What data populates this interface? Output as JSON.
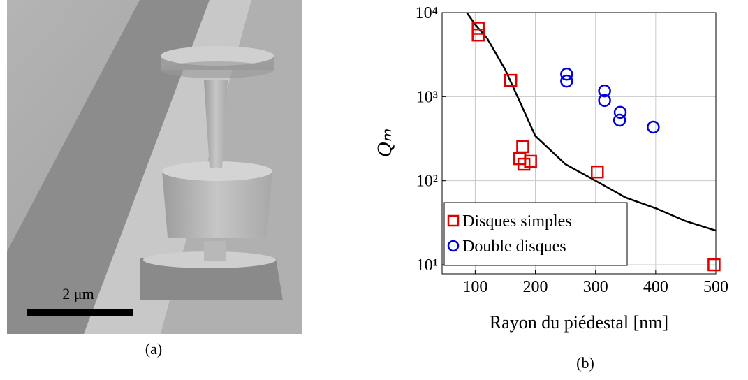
{
  "panel_a": {
    "scale_label": "2 μm",
    "caption": "(a)"
  },
  "panel_b_caption": "(b)",
  "chart_data": {
    "type": "scatter",
    "xlabel": "Rayon du piédestal [nm]",
    "ylabel": "Qₘ",
    "xlim": [
      45,
      500
    ],
    "xticks": [
      100,
      200,
      300,
      400,
      500
    ],
    "ylim": [
      7.8,
      10000
    ],
    "log_y": true,
    "yticks": [
      {
        "value": 10,
        "label": "10¹"
      },
      {
        "value": 100,
        "label": "10²"
      },
      {
        "value": 1000,
        "label": "10³"
      },
      {
        "value": 10000,
        "label": "10⁴"
      }
    ],
    "grid": true,
    "legend": "lower left",
    "series": [
      {
        "name": "Disques simples",
        "color": "#e00000",
        "marker": "square",
        "x": [
          105,
          105,
          159,
          179,
          174,
          181,
          192,
          303,
          497
        ],
        "values": [
          6500,
          5400,
          1560,
          254,
          183,
          157,
          170,
          127,
          10
        ]
      },
      {
        "name": "Double disques",
        "color": "#0000dd",
        "marker": "circle",
        "x": [
          252,
          252,
          315,
          315,
          341,
          340,
          396
        ],
        "values": [
          1850,
          1530,
          1170,
          900,
          650,
          525,
          434
        ]
      }
    ],
    "fit": {
      "color": "#000000",
      "x": [
        86,
        100,
        120,
        150,
        200,
        250,
        300,
        350,
        400,
        450,
        500
      ],
      "values": [
        10000,
        7200,
        4920,
        2090,
        340,
        157,
        100,
        63,
        47,
        33,
        25.5
      ]
    }
  }
}
